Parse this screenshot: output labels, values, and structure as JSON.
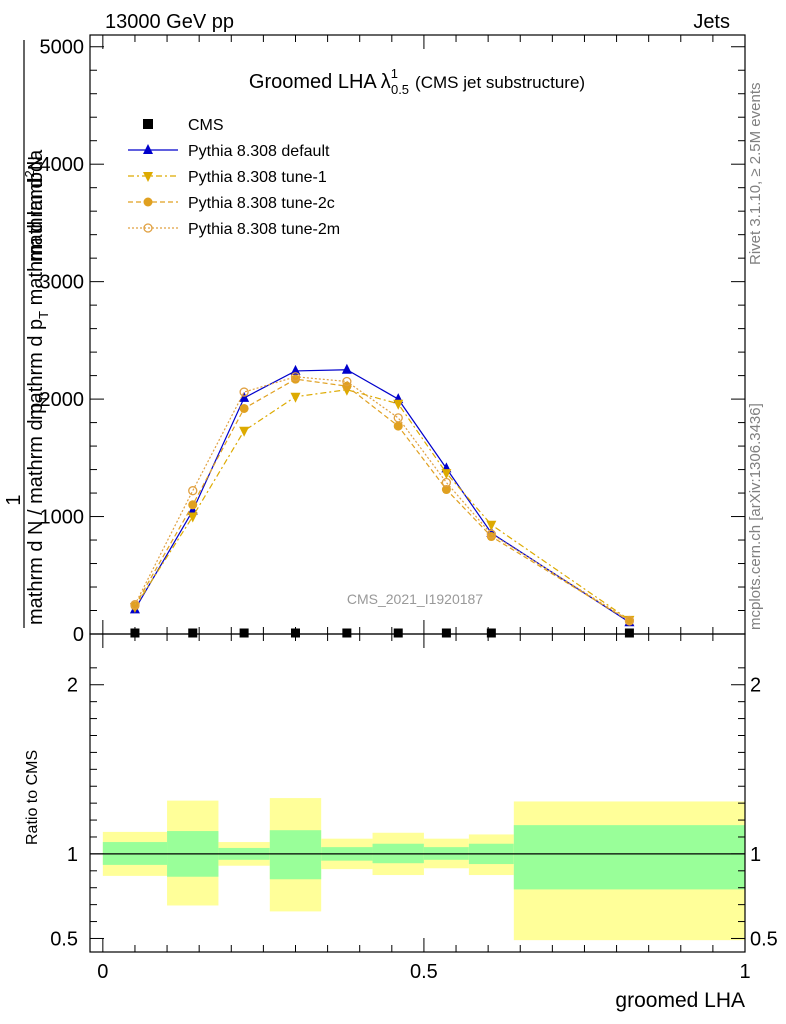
{
  "header": {
    "left": "13000 GeV pp",
    "right": "Jets"
  },
  "side_text": {
    "rivet": "Rivet 3.1.10, ≥ 2.5M events",
    "mcplots": "mcplots.cern.ch [arXiv:1306.3436]"
  },
  "chart_data": [
    {
      "type": "line",
      "title_main": "Groomed LHA",
      "title_lambda": "λ",
      "title_sup": "1",
      "title_sub": "0.5",
      "title_note": "(CMS jet substructure)",
      "watermark": "CMS_2021_I1920187",
      "ylabel_parts": {
        "numerator": "1",
        "den1": "mathrm d N / mathrm d p",
        "den1_sub": "T",
        "num2": "mathrm d",
        "num2_sup": "2",
        "num2_rest": "N",
        "den2": "mathrm d p",
        "den2_sub": "T",
        "den2_rest": " mathrm d lambda"
      },
      "ylim": [
        0,
        5100
      ],
      "yticks": [
        0,
        1000,
        2000,
        3000,
        4000,
        5000
      ],
      "ytick_labels": [
        "0",
        "1000",
        "2000",
        "3000",
        "4000",
        "5000"
      ],
      "xlim": [
        -0.02,
        1.0
      ],
      "legend_position": "top-left",
      "series": [
        {
          "name": "CMS",
          "marker": "square",
          "color": "#000000",
          "x": [
            0.05,
            0.14,
            0.22,
            0.3,
            0.38,
            0.46,
            0.535,
            0.605,
            0.82
          ],
          "values": [
            0,
            0,
            0,
            0,
            0,
            0,
            0,
            0,
            0
          ]
        },
        {
          "name": "Pythia 8.308 default",
          "marker": "triangle-up",
          "color": "#0000cc",
          "dash": "solid",
          "x": [
            0.05,
            0.14,
            0.22,
            0.3,
            0.38,
            0.46,
            0.535,
            0.605,
            0.82
          ],
          "values": [
            210,
            1050,
            2010,
            2240,
            2250,
            2000,
            1410,
            860,
            100
          ]
        },
        {
          "name": "Pythia 8.308 tune-1",
          "marker": "triangle-down",
          "color": "#ddaa00",
          "dash": "6,3,2,3",
          "x": [
            0.05,
            0.14,
            0.22,
            0.3,
            0.38,
            0.46,
            0.535,
            0.605,
            0.82
          ],
          "values": [
            230,
            1000,
            1730,
            2020,
            2080,
            1960,
            1370,
            930,
            120
          ]
        },
        {
          "name": "Pythia 8.308 tune-2c",
          "marker": "circle-filled",
          "color": "#e0a020",
          "dash": "5,3",
          "x": [
            0.05,
            0.14,
            0.22,
            0.3,
            0.38,
            0.46,
            0.535,
            0.605,
            0.82
          ],
          "values": [
            240,
            1100,
            1920,
            2170,
            2110,
            1770,
            1230,
            830,
            110
          ]
        },
        {
          "name": "Pythia 8.308 tune-2m",
          "marker": "circle-open",
          "color": "#e0a040",
          "dash": "2,2",
          "x": [
            0.05,
            0.14,
            0.22,
            0.3,
            0.38,
            0.46,
            0.535,
            0.605,
            0.82
          ],
          "values": [
            250,
            1220,
            2060,
            2190,
            2150,
            1840,
            1290,
            850,
            115
          ]
        }
      ]
    },
    {
      "type": "bar",
      "ylabel": "Ratio to CMS",
      "xlabel": "groomed LHA",
      "ylim": [
        0.42,
        2.3
      ],
      "yticks": [
        0.5,
        1,
        2
      ],
      "ytick_labels": [
        "0.5",
        "1",
        "2"
      ],
      "xticks": [
        0,
        0.5,
        1
      ],
      "xtick_labels": [
        "0",
        "0.5",
        "1"
      ],
      "xlim": [
        -0.02,
        1.0
      ],
      "reference_line": 1,
      "bins": [
        {
          "lo": 0.0,
          "hi": 0.1,
          "stat_lo": 0.935,
          "stat_hi": 1.07,
          "tot_lo": 0.87,
          "tot_hi": 1.13
        },
        {
          "lo": 0.1,
          "hi": 0.18,
          "stat_lo": 0.865,
          "stat_hi": 1.135,
          "tot_lo": 0.695,
          "tot_hi": 1.315
        },
        {
          "lo": 0.18,
          "hi": 0.26,
          "stat_lo": 0.965,
          "stat_hi": 1.035,
          "tot_lo": 0.93,
          "tot_hi": 1.07
        },
        {
          "lo": 0.26,
          "hi": 0.34,
          "stat_lo": 0.85,
          "stat_hi": 1.14,
          "tot_lo": 0.66,
          "tot_hi": 1.33
        },
        {
          "lo": 0.34,
          "hi": 0.42,
          "stat_lo": 0.96,
          "stat_hi": 1.04,
          "tot_lo": 0.91,
          "tot_hi": 1.09
        },
        {
          "lo": 0.42,
          "hi": 0.5,
          "stat_lo": 0.945,
          "stat_hi": 1.06,
          "tot_lo": 0.875,
          "tot_hi": 1.125
        },
        {
          "lo": 0.5,
          "hi": 0.57,
          "stat_lo": 0.965,
          "stat_hi": 1.04,
          "tot_lo": 0.915,
          "tot_hi": 1.09
        },
        {
          "lo": 0.57,
          "hi": 0.64,
          "stat_lo": 0.94,
          "stat_hi": 1.06,
          "tot_lo": 0.875,
          "tot_hi": 1.115
        },
        {
          "lo": 0.64,
          "hi": 1.0,
          "stat_lo": 0.79,
          "stat_hi": 1.17,
          "tot_lo": 0.49,
          "tot_hi": 1.31
        }
      ]
    }
  ],
  "colors": {
    "stat_band": "#99ff99",
    "total_band": "#ffff99",
    "frame": "#000000",
    "watermark": "#999999"
  }
}
